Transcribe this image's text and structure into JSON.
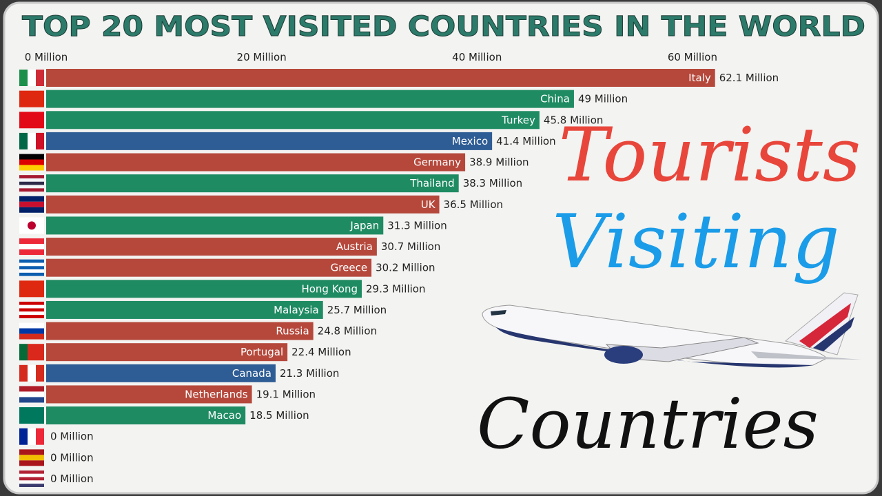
{
  "chart_data": {
    "type": "hbar",
    "title": "TOP 20 MOST VISITED COUNTRIES IN THE WORLD",
    "categories": [
      "Italy",
      "China",
      "Turkey",
      "Mexico",
      "Germany",
      "Thailand",
      "UK",
      "Japan",
      "Austria",
      "Greece",
      "Hong Kong",
      "Malaysia",
      "Russia",
      "Portugal",
      "Canada",
      "Netherlands",
      "Macao",
      null,
      null,
      null
    ],
    "values": [
      62.1,
      49,
      45.8,
      41.4,
      38.9,
      38.3,
      36.5,
      31.3,
      30.7,
      30.2,
      29.3,
      25.7,
      24.8,
      22.4,
      21.3,
      19.1,
      18.5,
      0,
      0,
      0
    ],
    "value_labels": [
      "62.1 Million",
      "49 Million",
      "45.8 Million",
      "41.4 Million",
      "38.9 Million",
      "38.3 Million",
      "36.5 Million",
      "31.3 Million",
      "30.7 Million",
      "30.2 Million",
      "29.3 Million",
      "25.7 Million",
      "24.8 Million",
      "22.4 Million",
      "21.3 Million",
      "19.1 Million",
      "18.5 Million",
      "0 Million",
      "0 Million",
      "0 Million"
    ],
    "colors": [
      "#b5483b",
      "#1f8b63",
      "#1f8b63",
      "#2e5c94",
      "#b5483b",
      "#1f8b63",
      "#b5483b",
      "#1f8b63",
      "#b5483b",
      "#b5483b",
      "#1f8b63",
      "#1f8b63",
      "#b5483b",
      "#b5483b",
      "#2e5c94",
      "#b5483b",
      "#1f8b63",
      "#b5483b",
      "#b5483b",
      "#2e5c94"
    ],
    "xlim": [
      0,
      76
    ],
    "xticks": [
      {
        "value": 0,
        "label": "0 Million"
      },
      {
        "value": 20,
        "label": "20 Million"
      },
      {
        "value": 40,
        "label": "40 Million"
      },
      {
        "value": 60,
        "label": "60 Million"
      }
    ],
    "annotations": [
      "Tourists",
      "Visiting",
      "Countries"
    ]
  }
}
